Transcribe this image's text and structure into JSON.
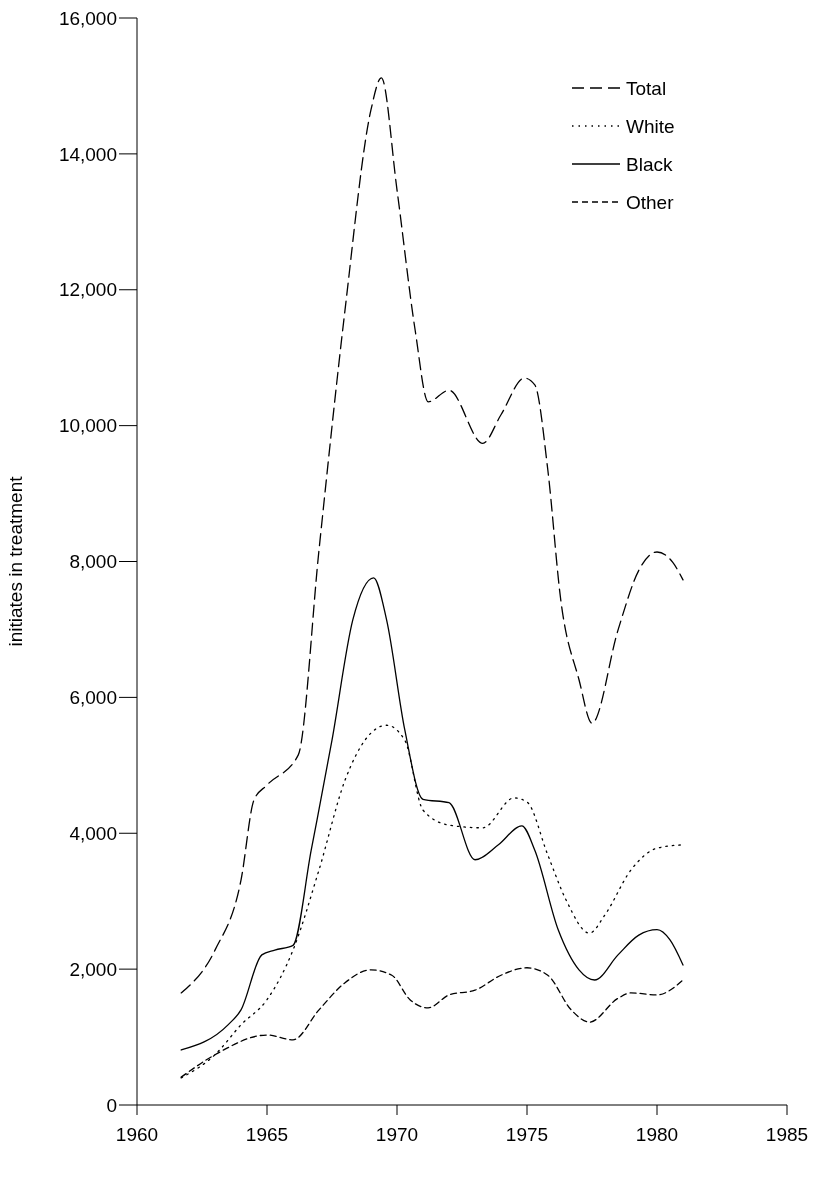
{
  "chart_data": {
    "type": "line",
    "ylabel": "initiates in treatment",
    "xlim": [
      1960,
      1985
    ],
    "xticks": [
      1960,
      1965,
      1970,
      1975,
      1980,
      1985
    ],
    "ylim": [
      0,
      16000
    ],
    "yticks": [
      0,
      {
        "value": 2000,
        "label": "2,000"
      },
      {
        "value": 4000,
        "label": "4,000"
      },
      {
        "value": 6000,
        "label": "6,000"
      },
      {
        "value": 8000,
        "label": "8,000"
      },
      {
        "value": 10000,
        "label": "10,000"
      },
      {
        "value": 12000,
        "label": "12,000"
      },
      {
        "value": 14000,
        "label": "14,000"
      },
      {
        "value": 16000,
        "label": "16,000"
      }
    ],
    "grid": false,
    "legend": "top right",
    "marker": "none",
    "series": [
      {
        "name": "Total",
        "color": "#000000",
        "line_style": "dashed",
        "x": [
          1961.7,
          1963,
          1964,
          1964.5,
          1965,
          1966.2,
          1967,
          1968,
          1969,
          1969.4,
          1970,
          1970.7,
          1971.2,
          1972,
          1973.3,
          1974,
          1974.9,
          1975.3,
          1975.8,
          1976.3,
          1977,
          1977.5,
          1978.5,
          1979.3,
          1980,
          1980.6,
          1981
        ],
        "values": [
          1650,
          2280,
          3310,
          4490,
          4710,
          5150,
          8170,
          11700,
          14650,
          15120,
          13470,
          11400,
          10350,
          10520,
          9740,
          10160,
          10700,
          10600,
          9350,
          7430,
          6260,
          5620,
          6990,
          7870,
          8140,
          7990,
          7730
        ]
      },
      {
        "name": "White",
        "color": "#000000",
        "line_style": "dotted",
        "x": [
          1961.7,
          1963,
          1964,
          1965,
          1966,
          1967,
          1968,
          1969.6,
          1970.3,
          1971,
          1972,
          1973.3,
          1974.5,
          1975,
          1975.8,
          1976.5,
          1977.4,
          1978,
          1979,
          1980,
          1981
        ],
        "values": [
          400,
          740,
          1180,
          1550,
          2280,
          3460,
          4780,
          5590,
          5370,
          4340,
          4120,
          4080,
          4520,
          4460,
          3680,
          3020,
          2530,
          2800,
          3460,
          3780,
          3830
        ]
      },
      {
        "name": "Black",
        "color": "#000000",
        "line_style": "solid",
        "x": [
          1961.7,
          1963.5,
          1964,
          1964.8,
          1965.3,
          1966,
          1966.7,
          1967.5,
          1968.3,
          1969.1,
          1969.6,
          1970.3,
          1971,
          1972,
          1973,
          1973.9,
          1974.8,
          1975.3,
          1976.2,
          1977,
          1977.6,
          1978.5,
          1979.3,
          1980,
          1980.5,
          1981
        ],
        "values": [
          810,
          1180,
          1400,
          2210,
          2280,
          2350,
          3750,
          5370,
          7140,
          7760,
          7140,
          5520,
          4500,
          4450,
          3610,
          3830,
          4110,
          3750,
          2580,
          1990,
          1840,
          2210,
          2500,
          2580,
          2430,
          2060
        ]
      },
      {
        "name": "Other",
        "color": "#000000",
        "line_style": "dashed",
        "x": [
          1961.7,
          1963,
          1965,
          1966,
          1967,
          1968,
          1969,
          1969.8,
          1970.5,
          1971.2,
          1972,
          1973,
          1974,
          1975,
          1975.8,
          1976.7,
          1977.4,
          1978.5,
          1979,
          1980,
          1981
        ],
        "values": [
          410,
          740,
          1030,
          960,
          1400,
          1800,
          1990,
          1910,
          1550,
          1430,
          1620,
          1690,
          1910,
          2020,
          1910,
          1400,
          1220,
          1570,
          1650,
          1620,
          1840
        ]
      }
    ]
  }
}
